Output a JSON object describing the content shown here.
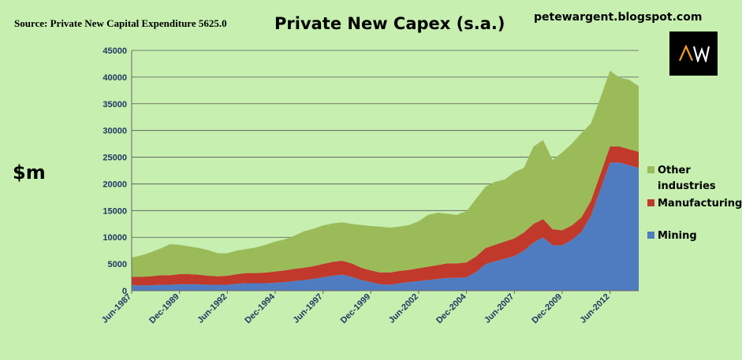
{
  "header": {
    "source": "Source: Private New Capital Expenditure 5625.0",
    "title": "Private New Capex (s.a.)",
    "blog": "petewargent.blogspot.com",
    "logo_text": "AW",
    "unit": "$m"
  },
  "colors": {
    "background": "#c6efb0",
    "mining": "#4f7cc1",
    "manufacturing": "#c0392b",
    "other": "#9bbb59",
    "grid": "#555555",
    "tick": "#1f3864"
  },
  "chart_data": {
    "type": "area",
    "stacked": true,
    "title": "Private New Capex (s.a.)",
    "ylabel": "$m",
    "ylim": [
      0,
      45000
    ],
    "yticks": [
      0,
      5000,
      10000,
      15000,
      20000,
      25000,
      30000,
      35000,
      40000,
      45000
    ],
    "xticks": [
      "Jun-1987",
      "Dec-1989",
      "Jun-1992",
      "Dec-1994",
      "Jun-1997",
      "Dec-1999",
      "Jun-2002",
      "Dec-2004",
      "Jun-2007",
      "Dec-2009",
      "Jun-2012"
    ],
    "grid": true,
    "legend_position": "right",
    "x": [
      "Jun-1987",
      "Dec-1987",
      "Jun-1988",
      "Dec-1988",
      "Jun-1989",
      "Dec-1989",
      "Jun-1990",
      "Dec-1990",
      "Jun-1991",
      "Dec-1991",
      "Jun-1992",
      "Dec-1992",
      "Jun-1993",
      "Dec-1993",
      "Jun-1994",
      "Dec-1994",
      "Jun-1995",
      "Dec-1995",
      "Jun-1996",
      "Dec-1996",
      "Jun-1997",
      "Dec-1997",
      "Jun-1998",
      "Dec-1998",
      "Jun-1999",
      "Dec-1999",
      "Jun-2000",
      "Dec-2000",
      "Jun-2001",
      "Dec-2001",
      "Jun-2002",
      "Dec-2002",
      "Jun-2003",
      "Dec-2003",
      "Jun-2004",
      "Dec-2004",
      "Jun-2005",
      "Dec-2005",
      "Jun-2006",
      "Dec-2006",
      "Jun-2007",
      "Dec-2007",
      "Jun-2008",
      "Dec-2008",
      "Jun-2009",
      "Dec-2009",
      "Jun-2010",
      "Dec-2010",
      "Jun-2011",
      "Dec-2011",
      "Jun-2012",
      "Dec-2012",
      "Jun-2013",
      "Dec-2013"
    ],
    "series": [
      {
        "name": "Mining",
        "color": "#4f7cc1",
        "values": [
          1000,
          1000,
          1000,
          1100,
          1100,
          1200,
          1200,
          1200,
          1100,
          1100,
          1100,
          1300,
          1400,
          1400,
          1400,
          1500,
          1600,
          1800,
          2000,
          2200,
          2500,
          2800,
          3000,
          2600,
          2000,
          1600,
          1200,
          1100,
          1400,
          1600,
          1800,
          2000,
          2200,
          2400,
          2400,
          2500,
          3500,
          5000,
          5500,
          6000,
          6500,
          7500,
          9000,
          10000,
          8500,
          8500,
          9500,
          11000,
          14000,
          19000,
          24000,
          24000,
          23500,
          23000
        ]
      },
      {
        "name": "Manufacturing",
        "color": "#c0392b",
        "values": [
          1600,
          1600,
          1700,
          1800,
          1800,
          1900,
          1900,
          1800,
          1700,
          1600,
          1700,
          1800,
          1900,
          1900,
          2000,
          2100,
          2200,
          2300,
          2300,
          2400,
          2500,
          2600,
          2600,
          2500,
          2300,
          2200,
          2200,
          2300,
          2300,
          2300,
          2400,
          2500,
          2600,
          2700,
          2700,
          2800,
          2900,
          3000,
          3100,
          3200,
          3300,
          3400,
          3500,
          3400,
          3000,
          2800,
          2700,
          2700,
          2800,
          2900,
          3000,
          3000,
          3000,
          3000
        ]
      },
      {
        "name": "Other industries",
        "color": "#9bbb59",
        "values": [
          3600,
          4000,
          4500,
          5000,
          5800,
          5500,
          5200,
          5000,
          4800,
          4300,
          4200,
          4400,
          4500,
          4800,
          5200,
          5600,
          5800,
          6200,
          6800,
          7000,
          7200,
          7200,
          7200,
          7400,
          8000,
          8300,
          8600,
          8400,
          8300,
          8400,
          8800,
          9700,
          9800,
          9300,
          9100,
          9600,
          10800,
          11500,
          11800,
          11600,
          12400,
          12100,
          14500,
          14800,
          13000,
          14600,
          15300,
          15800,
          14500,
          14200,
          14200,
          12900,
          13000,
          12300
        ]
      }
    ]
  }
}
